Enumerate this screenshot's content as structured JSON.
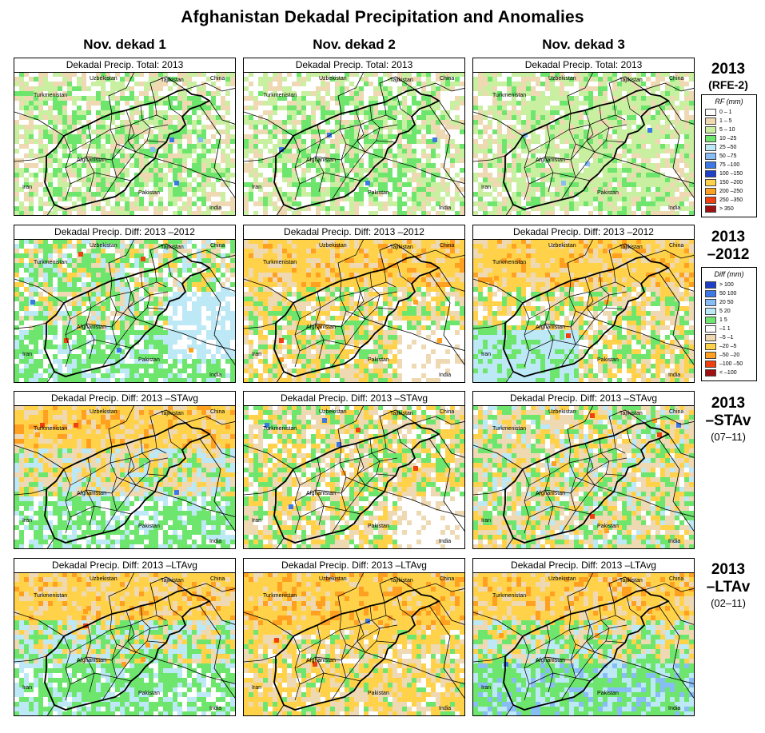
{
  "title": "Afghanistan Dekadal Precipitation and Anomalies",
  "columns": [
    "Nov. dekad 1",
    "Nov. dekad 2",
    "Nov. dekad 3"
  ],
  "rows": [
    {
      "label": "2013",
      "sub": "(RFE-2)",
      "panel_title": "Dekadal Precip. Total: 2013",
      "kind": "total"
    },
    {
      "label": "2013",
      "sub": "–2012",
      "panel_title": "Dekadal Precip. Diff:  2013 –2012",
      "kind": "diff"
    },
    {
      "label": "2013",
      "sub": "–STAv",
      "sub2": "(07–11)",
      "panel_title": "Dekadal Precip. Diff:  2013 –STAvg",
      "kind": "diff"
    },
    {
      "label": "2013",
      "sub": "–LTAv",
      "sub2": "(02–11)",
      "panel_title": "Dekadal Precip. Diff:  2013 –LTAvg",
      "kind": "diff"
    }
  ],
  "map_labels": {
    "uzbekistan": "Uzbekistan",
    "tajikistan": "Tajikistan",
    "china": "China",
    "turkmenistan": "Turkmenistan",
    "afghanistan": "Afghanistan",
    "iran": "Iran",
    "pakistan": "Pakistan",
    "india": "India"
  },
  "legend_rf": {
    "title": "RF (mm)",
    "items": [
      {
        "label": "0 – 1",
        "color": "#ffffff"
      },
      {
        "label": "1 – 5",
        "color": "#eed9b3"
      },
      {
        "label": "5 – 10",
        "color": "#c8f0a0"
      },
      {
        "label": "10 –25",
        "color": "#6ee66e"
      },
      {
        "label": "25 –50",
        "color": "#bde8f5"
      },
      {
        "label": "50 –75",
        "color": "#88bcf4"
      },
      {
        "label": "75 –100",
        "color": "#3c78e6"
      },
      {
        "label": "100 –150",
        "color": "#1e40c8"
      },
      {
        "label": "150 –200",
        "color": "#ffd24a"
      },
      {
        "label": "200 –250",
        "color": "#ffa020"
      },
      {
        "label": "250 –350",
        "color": "#f04010"
      },
      {
        "label": "> 350",
        "color": "#a01010"
      }
    ]
  },
  "legend_diff": {
    "title": "Diff (mm)",
    "items": [
      {
        "label": "> 100",
        "color": "#1e40c8"
      },
      {
        "label": "50  100",
        "color": "#3c78e6"
      },
      {
        "label": "20  50",
        "color": "#88bcf4"
      },
      {
        "label": "5  20",
        "color": "#bde8f5"
      },
      {
        "label": "1  5",
        "color": "#6ee66e"
      },
      {
        "label": "–1  1",
        "color": "#ffffff"
      },
      {
        "label": "–5  –1",
        "color": "#eed9b3"
      },
      {
        "label": "–20  –5",
        "color": "#ffd24a"
      },
      {
        "label": "–50  –20",
        "color": "#ffa020"
      },
      {
        "label": "–100  –50",
        "color": "#f04010"
      },
      {
        "label": "< –100",
        "color": "#a01010"
      }
    ]
  },
  "colors": {
    "white": "#ffffff",
    "tan": "#eed9b3",
    "light_green": "#c8f0a0",
    "green": "#6ee66e",
    "light_blue": "#bde8f5",
    "blue": "#88bcf4",
    "mid_blue": "#3c78e6",
    "yellow": "#ffd24a",
    "orange": "#ffa020",
    "red_orange": "#f04010",
    "dark_red": "#a01010"
  }
}
